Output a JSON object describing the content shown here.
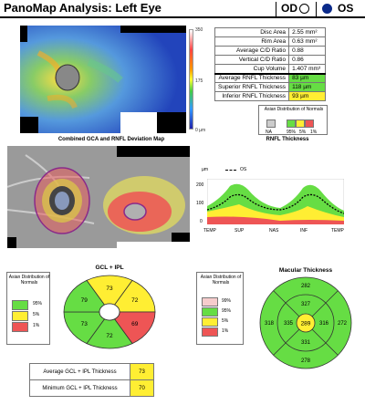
{
  "header": {
    "title": "PanoMap Analysis: Left Eye",
    "od_label": "OD",
    "os_label": "OS"
  },
  "rnfl_map": {
    "scale_top": "350",
    "scale_mid": "175",
    "scale_bottom": "0 µm",
    "caption": "Combined GCA and RNFL Deviation Map"
  },
  "metrics": [
    {
      "label": "Disc Area",
      "value": "2.55 mm²",
      "color": "#ffffff"
    },
    {
      "label": "Rim Area",
      "value": "0.63 mm²",
      "color": "#ffffff"
    },
    {
      "label": "Average C/D Ratio",
      "value": "0.88",
      "color": "#ffffff"
    },
    {
      "label": "Vertical C/D Ratio",
      "value": "0.86",
      "color": "#ffffff"
    },
    {
      "label": "Cup Volume",
      "value": "1.407 mm³",
      "color": "#ffffff"
    },
    {
      "label": "Average RNFL Thickness",
      "value": "83 µm",
      "color": "#66dd44"
    },
    {
      "label": "Superior RNFL Thickness",
      "value": "118 µm",
      "color": "#66dd44"
    },
    {
      "label": "Inferior RNFL Thickness",
      "value": "93 µm",
      "color": "#ffee33"
    }
  ],
  "rnfl_legend": {
    "title": "Asian Distribution of Normals",
    "labels": [
      "NA",
      "95%",
      "5%",
      "1%"
    ],
    "caption": "RNFL Thickness"
  },
  "tsnit": {
    "y_unit": "µm",
    "legend": "OS",
    "y_ticks": [
      "200",
      "100",
      "0"
    ],
    "x_ticks": [
      "TEMP",
      "SUP",
      "NAS",
      "INF",
      "TEMP"
    ]
  },
  "gcl": {
    "title": "GCL + IPL",
    "legend_title": "Asian Distribution of Normals",
    "legend_labels": [
      "95%",
      "5%",
      "1%"
    ],
    "sectors": [
      {
        "value": "73",
        "color": "#ffee33"
      },
      {
        "value": "72",
        "color": "#ffee33"
      },
      {
        "value": "69",
        "color": "#ee5555"
      },
      {
        "value": "72",
        "color": "#66dd44"
      },
      {
        "value": "73",
        "color": "#66dd44"
      },
      {
        "value": "79",
        "color": "#66dd44"
      }
    ],
    "avg_label": "Average GCL + IPL Thickness",
    "avg_value": "73",
    "min_label": "Minimum GCL + IPL Thickness",
    "min_value": "70"
  },
  "macular": {
    "title": "Macular Thickness",
    "legend_labels": [
      "99%",
      "95%",
      "5%",
      "1%"
    ],
    "center": "289",
    "inner": {
      "sup": "327",
      "nas": "316",
      "inf": "331",
      "temp": "335"
    },
    "outer": {
      "sup": "282",
      "nas": "272",
      "inf": "278",
      "temp": "318"
    }
  }
}
